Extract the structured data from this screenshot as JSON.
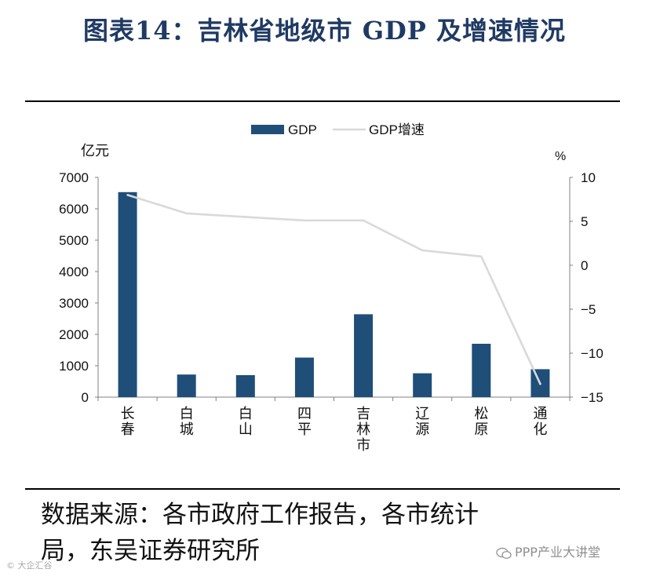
{
  "header": {
    "title": "图表14：吉林省地级市 GDP 及增速情况"
  },
  "chart_data": {
    "type": "bar",
    "categories": [
      "长春",
      "白城",
      "白山",
      "四平",
      "吉林市",
      "辽源",
      "松原",
      "通化"
    ],
    "category_lines": [
      [
        "长",
        "春"
      ],
      [
        "白",
        "城"
      ],
      [
        "白",
        "山"
      ],
      [
        "四",
        "平"
      ],
      [
        "吉",
        "林",
        "市"
      ],
      [
        "辽",
        "源"
      ],
      [
        "松",
        "原"
      ],
      [
        "通",
        "化"
      ]
    ],
    "series": [
      {
        "name": "GDP",
        "axis": "left",
        "type": "bar",
        "color": "#1f4e79",
        "values": [
          6530,
          720,
          700,
          1260,
          2640,
          760,
          1700,
          890
        ]
      },
      {
        "name": "GDP增速",
        "axis": "right",
        "type": "line",
        "color": "#d9d9d9",
        "values": [
          8.0,
          5.9,
          5.5,
          5.1,
          5.1,
          1.7,
          1.0,
          -13.5
        ]
      }
    ],
    "ylabel_left": "亿元",
    "ylabel_right": "%",
    "ylim_left": [
      0,
      7000
    ],
    "ylim_right": [
      -15,
      10
    ],
    "yticks_left": [
      0,
      1000,
      2000,
      3000,
      4000,
      5000,
      6000,
      7000
    ],
    "yticks_right": [
      -15,
      -10,
      -5,
      0,
      5,
      10
    ],
    "legend_position": "top-center",
    "grid": false
  },
  "footer": {
    "source_line1": "数据来源：各市政府工作报告，各市统计",
    "source_line2": "局，东吴证券研究所",
    "watermark_right": "PPP产业大讲堂",
    "watermark_left": "© 大企汇谷"
  }
}
